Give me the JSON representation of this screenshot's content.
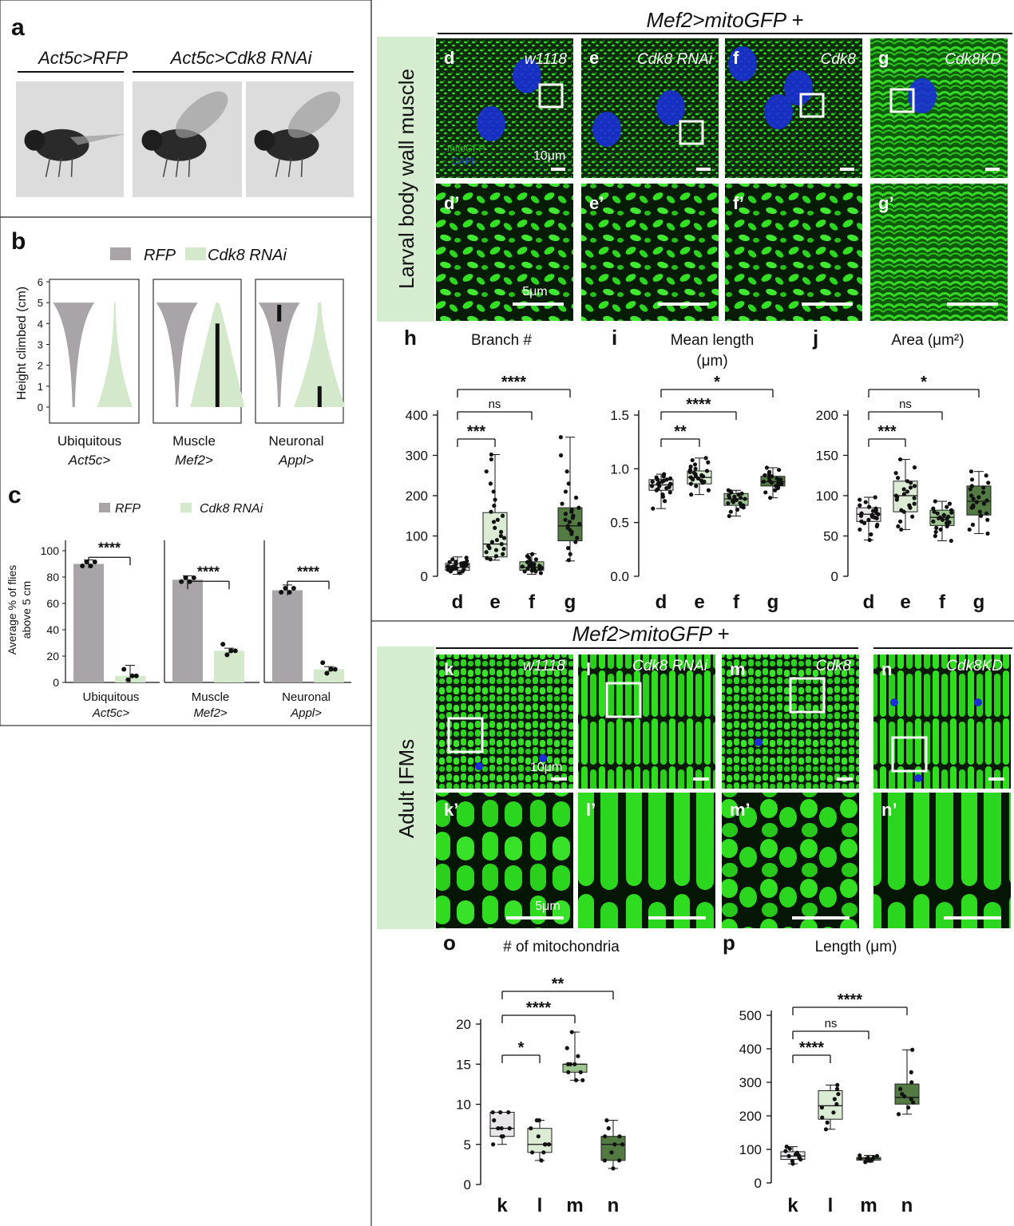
{
  "panel_letters": {
    "a": "a",
    "b": "b",
    "c": "c",
    "h": "h",
    "i": "i",
    "j": "j",
    "o": "o",
    "p": "p"
  },
  "panel_a": {
    "groups": [
      "Act5c>RFP",
      "Act5c>Cdk8 RNAi"
    ]
  },
  "panel_b": {
    "legend": [
      "RFP",
      "Cdk8 RNAi"
    ],
    "ylabel": "Height climbed (cm)",
    "yticks": [
      "0",
      "1",
      "2",
      "3",
      "4",
      "5",
      "6"
    ],
    "drivers": [
      {
        "name": "Ubiquitous",
        "driver": "Act5c>"
      },
      {
        "name": "Muscle",
        "driver": "Mef2>"
      },
      {
        "name": "Neuronal",
        "driver": "Appl>"
      }
    ]
  },
  "panel_c": {
    "legend": [
      "RFP",
      "Cdk8 RNAi"
    ],
    "ylabel_line1": "Average % of flies",
    "ylabel_line2": "above 5 cm",
    "yticks": [
      "0",
      "20",
      "40",
      "60",
      "80",
      "100"
    ],
    "sig": [
      "****",
      "****",
      "****"
    ],
    "drivers": [
      {
        "name": "Ubiquitous",
        "driver": "Act5c>"
      },
      {
        "name": "Muscle",
        "driver": "Mef2>"
      },
      {
        "name": "Neuronal",
        "driver": "Appl>"
      }
    ]
  },
  "micro_top": {
    "title": "Mef2>mitoGFP +",
    "side_label": "Larval body wall muscle",
    "panels": [
      {
        "letter": "d",
        "label": "w1118"
      },
      {
        "letter": "e",
        "label": "Cdk8 RNAi"
      },
      {
        "letter": "f",
        "label": "Cdk8"
      },
      {
        "letter": "g",
        "label": "Cdk8KD"
      }
    ],
    "zoom_letters": [
      "d’",
      "e’",
      "f’",
      "g’"
    ],
    "channel_labels": [
      "mitoGFP",
      "DAPI"
    ],
    "scale_top": "10μm",
    "scale_zoom": "5μm"
  },
  "micro_bottom": {
    "title": "Mef2>mitoGFP +",
    "side_label": "Adult IFMs",
    "panels": [
      {
        "letter": "k",
        "label": "w1118"
      },
      {
        "letter": "l",
        "label": "Cdk8 RNAi"
      },
      {
        "letter": "m",
        "label": "Cdk8"
      },
      {
        "letter": "n",
        "label": "Cdk8KD"
      }
    ],
    "zoom_letters": [
      "k’",
      "l’",
      "m’",
      "n’"
    ],
    "scale_top": "10μm",
    "scale_zoom": "5μm"
  },
  "colors": {
    "rfp": "#a9a4a8",
    "light_green": "#d4e9cc",
    "g_d": "#e9e6ea",
    "g_e": "#dcebd3",
    "g_f": "#9cc590",
    "g_g": "#527a42",
    "side_bg": "#d5ecd0",
    "gfp": "#2bd61e"
  },
  "chart_data": [
    {
      "id": "b",
      "type": "violin",
      "ylabel": "Height climbed (cm)",
      "ylim": [
        0,
        6
      ],
      "series": [
        {
          "name": "RFP",
          "median": [
            5,
            5,
            5
          ],
          "iqr": [
            [
              5,
              5
            ],
            [
              5,
              5
            ],
            [
              4.1,
              4.9
            ]
          ]
        },
        {
          "name": "Cdk8 RNAi",
          "median": [
            0,
            1,
            0.2
          ],
          "iqr": [
            [
              0,
              0
            ],
            [
              0,
              4
            ],
            [
              0,
              1
            ]
          ]
        }
      ],
      "categories": [
        "Ubiquitous Act5c>",
        "Muscle Mef2>",
        "Neuronal Appl>"
      ]
    },
    {
      "id": "c",
      "type": "bar",
      "ylabel": "Average % of flies above 5 cm",
      "ylim": [
        0,
        100
      ],
      "categories": [
        "Ubiquitous Act5c>",
        "Muscle Mef2>",
        "Neuronal Appl>"
      ],
      "series": [
        {
          "name": "RFP",
          "values": [
            90,
            78,
            70
          ],
          "err": [
            3,
            3,
            4
          ]
        },
        {
          "name": "Cdk8 RNAi",
          "values": [
            5,
            24,
            10
          ],
          "err": [
            8,
            2,
            2
          ]
        }
      ]
    },
    {
      "id": "h",
      "type": "box",
      "title": "Branch #",
      "ylim": [
        0,
        400
      ],
      "yticks": [
        "0",
        "100",
        "200",
        "300",
        "400"
      ],
      "categories": [
        "d",
        "e",
        "f",
        "g"
      ],
      "boxes": [
        {
          "min": 5,
          "q1": 15,
          "med": 22,
          "q3": 32,
          "max": 48,
          "points": [
            8,
            12,
            14,
            16,
            18,
            20,
            21,
            22,
            23,
            25,
            27,
            29,
            30,
            32,
            35,
            38,
            42,
            46,
            12,
            17,
            19,
            24,
            26,
            28,
            31,
            33,
            36
          ]
        },
        {
          "min": 40,
          "q1": 48,
          "med": 80,
          "q3": 158,
          "max": 302,
          "points": [
            42,
            45,
            50,
            55,
            60,
            65,
            70,
            75,
            80,
            90,
            100,
            110,
            120,
            135,
            150,
            160,
            175,
            190,
            210,
            230,
            260,
            290,
            302,
            68,
            85,
            95,
            140
          ]
        },
        {
          "min": 5,
          "q1": 15,
          "med": 22,
          "q3": 36,
          "max": 56,
          "points": [
            8,
            12,
            14,
            16,
            18,
            20,
            21,
            22,
            23,
            25,
            27,
            29,
            30,
            32,
            35,
            38,
            42,
            46,
            50,
            55,
            12,
            17,
            19,
            24,
            26,
            28
          ]
        },
        {
          "min": 38,
          "q1": 88,
          "med": 125,
          "q3": 170,
          "max": 345,
          "points": [
            40,
            55,
            70,
            85,
            95,
            105,
            115,
            120,
            125,
            130,
            135,
            140,
            150,
            160,
            165,
            170,
            180,
            195,
            210,
            230,
            260,
            300,
            345,
            110,
            145,
            155
          ]
        }
      ],
      "sig": [
        {
          "from": "d",
          "to": "e",
          "label": "***"
        },
        {
          "from": "d",
          "to": "f",
          "label": "ns"
        },
        {
          "from": "d",
          "to": "g",
          "label": "****"
        }
      ]
    },
    {
      "id": "i",
      "type": "box",
      "title": "Mean length (μm)",
      "ylim": [
        0,
        1.5
      ],
      "yticks": [
        "0.0",
        "0.5",
        "1.0",
        "1.5"
      ],
      "categories": [
        "d",
        "e",
        "f",
        "g"
      ],
      "boxes": [
        {
          "min": 0.63,
          "q1": 0.8,
          "med": 0.85,
          "q3": 0.9,
          "max": 0.95,
          "points": [
            0.63,
            0.7,
            0.74,
            0.78,
            0.8,
            0.82,
            0.83,
            0.84,
            0.85,
            0.86,
            0.87,
            0.88,
            0.89,
            0.9,
            0.91,
            0.92,
            0.93,
            0.95,
            0.76,
            0.81,
            0.86,
            0.88,
            0.9,
            0.84
          ]
        },
        {
          "min": 0.76,
          "q1": 0.86,
          "med": 0.92,
          "q3": 0.98,
          "max": 1.1,
          "points": [
            0.76,
            0.8,
            0.84,
            0.86,
            0.88,
            0.9,
            0.91,
            0.92,
            0.93,
            0.94,
            0.95,
            0.96,
            0.97,
            0.98,
            1.0,
            1.02,
            1.04,
            1.06,
            1.08,
            1.1,
            0.89,
            0.93,
            0.99,
            0.87
          ]
        },
        {
          "min": 0.56,
          "q1": 0.66,
          "med": 0.72,
          "q3": 0.77,
          "max": 0.8,
          "points": [
            0.56,
            0.6,
            0.62,
            0.64,
            0.66,
            0.68,
            0.69,
            0.7,
            0.71,
            0.72,
            0.73,
            0.74,
            0.75,
            0.76,
            0.77,
            0.78,
            0.79,
            0.8,
            0.65,
            0.7,
            0.73,
            0.68
          ]
        },
        {
          "min": 0.73,
          "q1": 0.84,
          "med": 0.88,
          "q3": 0.93,
          "max": 1.01,
          "points": [
            0.73,
            0.78,
            0.8,
            0.82,
            0.84,
            0.85,
            0.86,
            0.87,
            0.88,
            0.89,
            0.9,
            0.91,
            0.92,
            0.93,
            0.95,
            0.97,
            0.99,
            1.01,
            0.83,
            0.87,
            0.9,
            0.94
          ]
        }
      ],
      "sig": [
        {
          "from": "d",
          "to": "e",
          "label": "**"
        },
        {
          "from": "d",
          "to": "f",
          "label": "****"
        },
        {
          "from": "d",
          "to": "g",
          "label": "*"
        }
      ]
    },
    {
      "id": "j",
      "type": "box",
      "title": "Area (μm2)",
      "ylim": [
        0,
        200
      ],
      "yticks": [
        "0",
        "50",
        "100",
        "150",
        "200"
      ],
      "categories": [
        "d",
        "e",
        "f",
        "g"
      ],
      "boxes": [
        {
          "min": 45,
          "q1": 68,
          "med": 77,
          "q3": 85,
          "max": 98,
          "points": [
            45,
            52,
            58,
            62,
            66,
            68,
            70,
            72,
            74,
            76,
            77,
            78,
            80,
            82,
            84,
            86,
            88,
            92,
            95,
            98,
            64,
            73,
            81,
            75
          ]
        },
        {
          "min": 58,
          "q1": 80,
          "med": 100,
          "q3": 118,
          "max": 145,
          "points": [
            58,
            62,
            68,
            74,
            80,
            85,
            90,
            95,
            98,
            100,
            102,
            105,
            108,
            112,
            116,
            118,
            122,
            128,
            135,
            145,
            88,
            97,
            110,
            82
          ]
        },
        {
          "min": 44,
          "q1": 63,
          "med": 73,
          "q3": 82,
          "max": 93,
          "points": [
            44,
            50,
            55,
            58,
            62,
            64,
            66,
            68,
            70,
            72,
            73,
            74,
            76,
            78,
            80,
            82,
            84,
            86,
            90,
            93,
            60,
            71,
            79,
            67
          ]
        },
        {
          "min": 53,
          "q1": 76,
          "med": 93,
          "q3": 112,
          "max": 130,
          "points": [
            53,
            58,
            64,
            70,
            75,
            80,
            85,
            88,
            92,
            94,
            96,
            100,
            104,
            108,
            112,
            116,
            120,
            125,
            130,
            78,
            90,
            98,
            110,
            86
          ]
        }
      ],
      "sig": [
        {
          "from": "d",
          "to": "e",
          "label": "***"
        },
        {
          "from": "d",
          "to": "f",
          "label": "ns"
        },
        {
          "from": "d",
          "to": "g",
          "label": "*"
        }
      ]
    },
    {
      "id": "o",
      "type": "box",
      "title": "# of mitochondria",
      "ylim": [
        0,
        20
      ],
      "yticks": [
        "0",
        "5",
        "10",
        "15",
        "20"
      ],
      "categories": [
        "k",
        "l",
        "m",
        "n"
      ],
      "boxes": [
        {
          "min": 5,
          "q1": 6,
          "med": 7,
          "q3": 9,
          "max": 9,
          "points": [
            5,
            6,
            6,
            7,
            7,
            7,
            8,
            9,
            9,
            9
          ]
        },
        {
          "min": 3,
          "q1": 4,
          "med": 5,
          "q3": 7,
          "max": 8,
          "points": [
            3,
            4,
            4,
            5,
            5,
            5,
            6,
            7,
            8,
            8
          ]
        },
        {
          "min": 13,
          "q1": 14,
          "med": 15,
          "q3": 15,
          "max": 19,
          "points": [
            13,
            13,
            14,
            14,
            15,
            15,
            15,
            16,
            17,
            19
          ]
        },
        {
          "min": 2,
          "q1": 3,
          "med": 5,
          "q3": 6,
          "max": 8,
          "points": [
            2,
            3,
            3,
            4,
            5,
            5,
            6,
            6,
            7,
            8
          ]
        }
      ],
      "sig": [
        {
          "from": "k",
          "to": "l",
          "label": "*"
        },
        {
          "from": "k",
          "to": "m",
          "label": "****"
        },
        {
          "from": "k",
          "to": "n",
          "label": "**"
        }
      ]
    },
    {
      "id": "p",
      "type": "box",
      "title": "Length (μm)",
      "ylim": [
        0,
        500
      ],
      "yticks": [
        "0",
        "100",
        "200",
        "300",
        "400",
        "500"
      ],
      "categories": [
        "k",
        "l",
        "m",
        "n"
      ],
      "boxes": [
        {
          "min": 57,
          "q1": 70,
          "med": 80,
          "q3": 93,
          "max": 108,
          "points": [
            57,
            65,
            70,
            75,
            80,
            82,
            85,
            90,
            95,
            102,
            108
          ]
        },
        {
          "min": 160,
          "q1": 190,
          "med": 230,
          "q3": 275,
          "max": 292,
          "points": [
            160,
            180,
            195,
            210,
            225,
            235,
            250,
            265,
            280,
            292
          ]
        },
        {
          "min": 62,
          "q1": 68,
          "med": 72,
          "q3": 76,
          "max": 82,
          "points": [
            62,
            66,
            68,
            70,
            72,
            73,
            75,
            77,
            80,
            82
          ]
        },
        {
          "min": 205,
          "q1": 235,
          "med": 255,
          "q3": 295,
          "max": 397,
          "points": [
            205,
            225,
            240,
            250,
            258,
            265,
            280,
            300,
            330,
            397
          ]
        }
      ],
      "sig": [
        {
          "from": "k",
          "to": "l",
          "label": "****"
        },
        {
          "from": "k",
          "to": "m",
          "label": "ns"
        },
        {
          "from": "k",
          "to": "n",
          "label": "****"
        }
      ]
    }
  ]
}
